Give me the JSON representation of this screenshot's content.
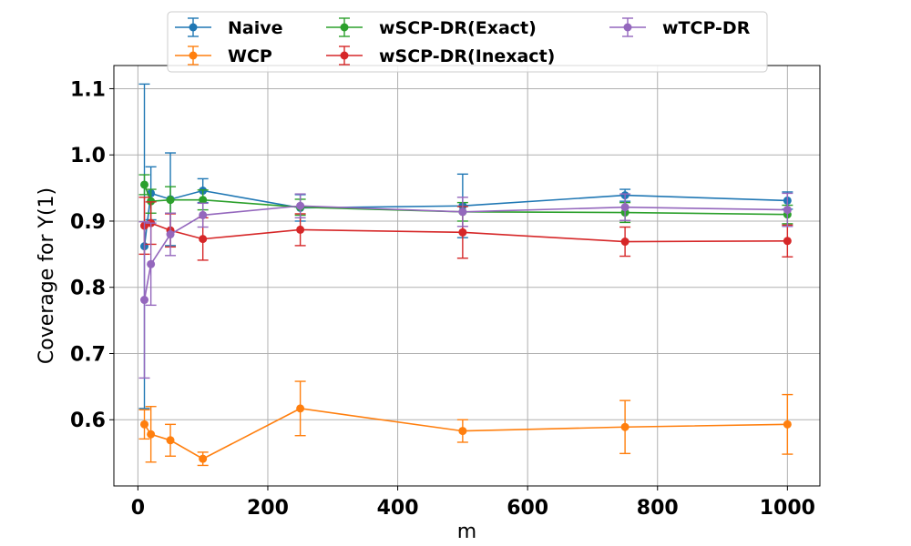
{
  "chart_data": {
    "type": "line",
    "title": "",
    "xlabel": "m",
    "ylabel": "Coverage for Y(1)",
    "xlim": [
      -37,
      1050
    ],
    "ylim": [
      0.5,
      1.135
    ],
    "xticks": [
      0,
      200,
      400,
      600,
      800,
      1000
    ],
    "xtick_labels": [
      "0",
      "200",
      "400",
      "600",
      "800",
      "1000"
    ],
    "yticks": [
      0.6,
      0.7,
      0.8,
      0.9,
      1.0,
      1.1
    ],
    "ytick_labels": [
      "0.6",
      "0.7",
      "0.8",
      "0.9",
      "1.0",
      "1.1"
    ],
    "grid": true,
    "legend_position": "top-center",
    "legend_columns": 3,
    "x": [
      10,
      20,
      50,
      100,
      250,
      500,
      750,
      1000
    ],
    "series": [
      {
        "name": "Naive",
        "color": "#1f77b4",
        "values": [
          0.862,
          0.942,
          0.933,
          0.946,
          0.92,
          0.923,
          0.939,
          0.931
        ],
        "errors": [
          0.245,
          0.04,
          0.07,
          0.018,
          0.02,
          0.048,
          0.009,
          0.013
        ]
      },
      {
        "name": "WCP",
        "color": "#ff7f0e",
        "values": [
          0.593,
          0.578,
          0.569,
          0.541,
          0.617,
          0.583,
          0.589,
          0.593
        ],
        "errors": [
          0.022,
          0.042,
          0.024,
          0.01,
          0.041,
          0.017,
          0.04,
          0.045
        ]
      },
      {
        "name": "wSCP-DR(Exact)",
        "color": "#2ca02c",
        "values": [
          0.955,
          0.93,
          0.932,
          0.932,
          0.921,
          0.914,
          0.913,
          0.91
        ],
        "errors": [
          0.015,
          0.018,
          0.02,
          0.015,
          0.012,
          0.014,
          0.015,
          0.014
        ]
      },
      {
        "name": "wSCP-DR(Inexact)",
        "color": "#d62728",
        "values": [
          0.893,
          0.897,
          0.886,
          0.873,
          0.887,
          0.883,
          0.869,
          0.87
        ],
        "errors": [
          0.043,
          0.032,
          0.025,
          0.032,
          0.024,
          0.039,
          0.022,
          0.024
        ]
      },
      {
        "name": "wTCP-DR",
        "color": "#9467bd",
        "values": [
          0.781,
          0.835,
          0.88,
          0.909,
          0.923,
          0.914,
          0.921,
          0.917
        ],
        "errors": [
          0.118,
          0.062,
          0.032,
          0.018,
          0.018,
          0.022,
          0.02,
          0.025
        ]
      }
    ]
  }
}
